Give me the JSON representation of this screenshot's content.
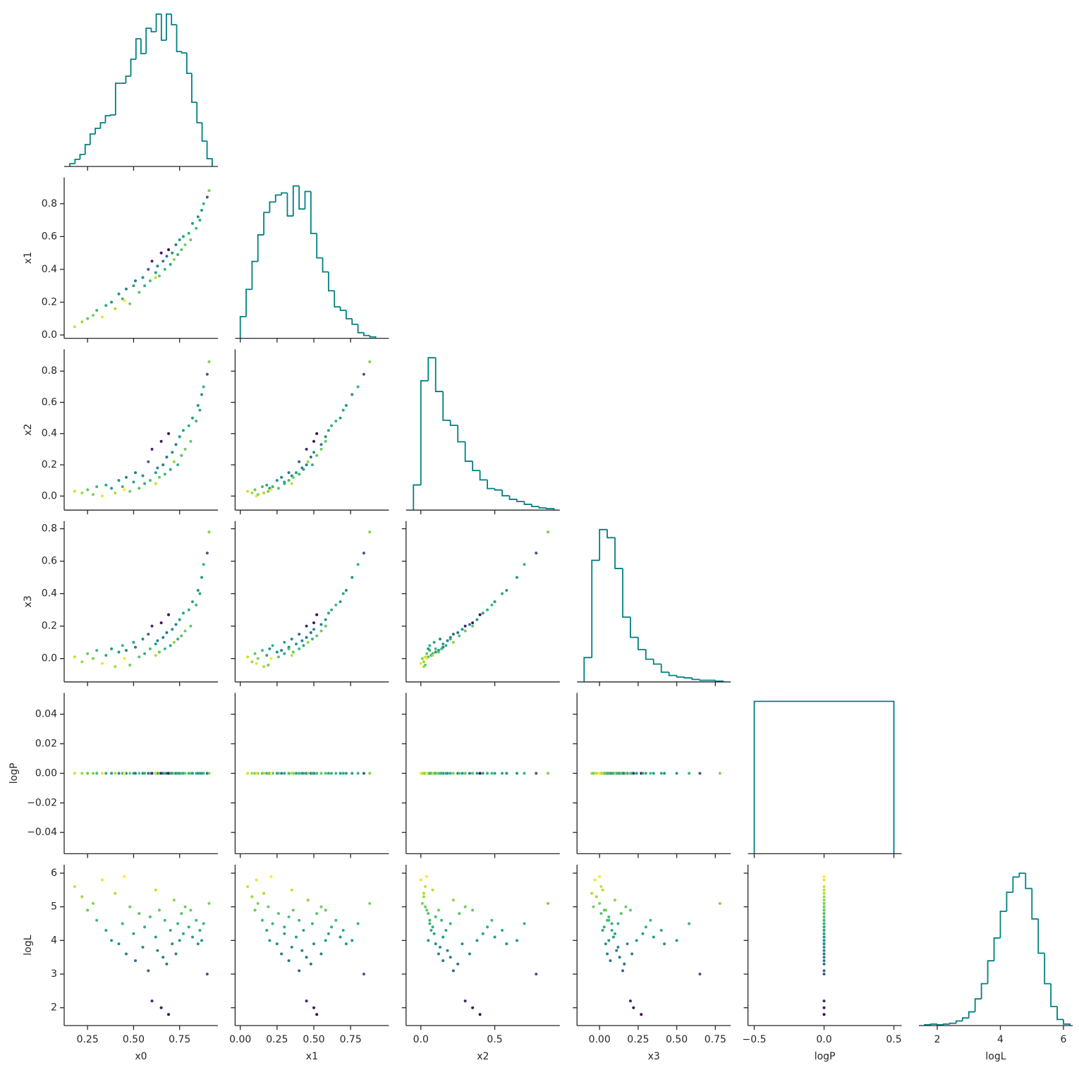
{
  "chart_data": {
    "type": "corner",
    "hist_color": "#008080",
    "color_by": "logL",
    "cmap": "viridis",
    "variables": [
      {
        "name": "x0",
        "xlim": [
          0.123,
          0.958
        ],
        "xticks": [
          0.25,
          {
            "value": 0.5,
            "label": "0.50"
          },
          0.75
        ],
        "bins": [
          0.154,
          0.182,
          0.209,
          0.237,
          0.264,
          0.292,
          0.32,
          0.347,
          0.375,
          0.402,
          0.43,
          0.458,
          0.485,
          0.513,
          0.54,
          0.568,
          0.596,
          0.623,
          0.651,
          0.678,
          0.706,
          0.734,
          0.761,
          0.789,
          0.816,
          0.844,
          0.872,
          0.899,
          0.927
        ],
        "counts": [
          4,
          10,
          17,
          31,
          46,
          54,
          62,
          72,
          73,
          118,
          118,
          128,
          152,
          181,
          160,
          196,
          191,
          216,
          179,
          216,
          201,
          163,
          161,
          132,
          91,
          62,
          36,
          11
        ]
      },
      {
        "name": "x1",
        "xlim": [
          -0.035,
          1.01
        ],
        "xticks": [
          {
            "value": 0,
            "label": "0.00"
          },
          0.25,
          {
            "value": 0.5,
            "label": "0.50"
          },
          0.75
        ],
        "ylim": [
          -0.02,
          0.96
        ],
        "yticks": [
          {
            "value": 0,
            "label": "0.0"
          },
          0.2,
          0.4,
          0.6,
          0.8
        ],
        "bins": [
          0,
          0.04,
          0.08,
          0.12,
          0.16,
          0.2,
          0.24,
          0.28,
          0.32,
          0.36,
          0.4,
          0.44,
          0.48,
          0.52,
          0.56,
          0.6,
          0.64,
          0.68,
          0.72,
          0.76,
          0.8,
          0.84,
          0.88,
          0.92
        ],
        "counts": [
          31,
          70,
          110,
          148,
          180,
          195,
          205,
          208,
          175,
          218,
          185,
          210,
          150,
          115,
          95,
          68,
          45,
          40,
          28,
          20,
          8,
          4,
          2
        ]
      },
      {
        "name": "x2",
        "xlim": [
          -0.1,
          0.94
        ],
        "xticks": [
          {
            "value": 0,
            "label": "0.0"
          },
          0.5
        ],
        "ylim": [
          -0.09,
          0.94
        ],
        "yticks": [
          {
            "value": 0,
            "label": "0.0"
          },
          0.2,
          0.4,
          0.6,
          0.8
        ],
        "bins": [
          -0.05,
          0,
          0.05,
          0.1,
          0.15,
          0.2,
          0.25,
          0.3,
          0.35,
          0.4,
          0.45,
          0.5,
          0.55,
          0.6,
          0.65,
          0.7,
          0.75,
          0.8,
          0.85,
          0.9
        ],
        "counts": [
          35,
          180,
          212,
          165,
          125,
          118,
          95,
          68,
          55,
          42,
          30,
          28,
          20,
          15,
          12,
          8,
          5,
          3,
          2
        ]
      },
      {
        "name": "x3",
        "xlim": [
          -0.146,
          0.85
        ],
        "xticks": [
          {
            "value": 0,
            "label": "0.00"
          },
          0.25,
          {
            "value": 0.5,
            "label": "0.50"
          },
          0.75
        ],
        "ylim": [
          -0.144,
          0.847
        ],
        "yticks": [
          {
            "value": 0,
            "label": "0.0"
          },
          0.2,
          0.4,
          0.6,
          0.8
        ],
        "bins": [
          -0.1,
          -0.05,
          0,
          0.05,
          0.1,
          0.15,
          0.2,
          0.25,
          0.3,
          0.35,
          0.4,
          0.45,
          0.5,
          0.55,
          0.6,
          0.65,
          0.7,
          0.75,
          0.8
        ],
        "counts": [
          30,
          150,
          188,
          178,
          140,
          80,
          55,
          40,
          28,
          22,
          12,
          8,
          6,
          5,
          3,
          2,
          2,
          1
        ]
      },
      {
        "name": "logP",
        "xlim": [
          -0.545,
          0.556
        ],
        "xticks": [
          {
            "value": -0.5,
            "label": "−0.5"
          },
          {
            "value": 0,
            "label": "0.0"
          },
          0.5
        ],
        "ylim": [
          -0.0544,
          0.0544
        ],
        "yticks": [
          {
            "value": -0.04,
            "label": "−0.04"
          },
          {
            "value": -0.02,
            "label": "−0.02"
          },
          {
            "value": 0,
            "label": "0.00"
          },
          0.02,
          0.04
        ],
        "bins": [
          -0.5,
          0.5
        ],
        "counts": [
          1
        ]
      },
      {
        "name": "logL",
        "xlim": [
          1.42,
          6.29
        ],
        "xticks": [
          2,
          4,
          6
        ],
        "ylim": [
          1.47,
          6.25
        ],
        "yticks": [
          2,
          3,
          4,
          5,
          6
        ],
        "bins": [
          1.6,
          1.8,
          2.0,
          2.2,
          2.4,
          2.6,
          2.8,
          3.0,
          3.2,
          3.4,
          3.6,
          3.8,
          4.0,
          4.2,
          4.4,
          4.6,
          4.8,
          5.0,
          5.2,
          5.4,
          5.6,
          5.8,
          6.0,
          6.2
        ],
        "counts": [
          1,
          2,
          1,
          2,
          3,
          6,
          10,
          18,
          35,
          55,
          85,
          115,
          150,
          175,
          195,
          200,
          180,
          140,
          95,
          55,
          25,
          8,
          2
        ]
      }
    ],
    "samples": {
      "x0": [
        0.18,
        0.22,
        0.25,
        0.28,
        0.3,
        0.33,
        0.35,
        0.38,
        0.4,
        0.42,
        0.44,
        0.46,
        0.48,
        0.5,
        0.51,
        0.53,
        0.55,
        0.56,
        0.58,
        0.59,
        0.6,
        0.62,
        0.63,
        0.64,
        0.65,
        0.66,
        0.67,
        0.68,
        0.69,
        0.7,
        0.71,
        0.72,
        0.73,
        0.74,
        0.75,
        0.76,
        0.77,
        0.78,
        0.8,
        0.81,
        0.82,
        0.84,
        0.85,
        0.86,
        0.87,
        0.88,
        0.9,
        0.91,
        0.45,
        0.62
      ],
      "x1": [
        0.05,
        0.08,
        0.1,
        0.12,
        0.15,
        0.11,
        0.18,
        0.2,
        0.16,
        0.25,
        0.22,
        0.28,
        0.19,
        0.3,
        0.33,
        0.26,
        0.35,
        0.3,
        0.4,
        0.33,
        0.45,
        0.38,
        0.42,
        0.36,
        0.5,
        0.45,
        0.4,
        0.48,
        0.52,
        0.43,
        0.5,
        0.46,
        0.55,
        0.49,
        0.58,
        0.52,
        0.6,
        0.55,
        0.62,
        0.58,
        0.68,
        0.65,
        0.72,
        0.7,
        0.76,
        0.8,
        0.84,
        0.88,
        0.21,
        0.35
      ],
      "x2": [
        0.03,
        0.02,
        0.04,
        0.01,
        0.06,
        0.0,
        0.07,
        0.05,
        0.02,
        0.1,
        0.06,
        0.12,
        0.03,
        0.09,
        0.15,
        0.05,
        0.13,
        0.08,
        0.22,
        0.1,
        0.3,
        0.15,
        0.18,
        0.12,
        0.35,
        0.2,
        0.14,
        0.25,
        0.4,
        0.17,
        0.28,
        0.22,
        0.33,
        0.2,
        0.38,
        0.26,
        0.42,
        0.3,
        0.45,
        0.35,
        0.5,
        0.48,
        0.58,
        0.55,
        0.65,
        0.7,
        0.78,
        0.86,
        0.04,
        0.08
      ],
      "x3": [
        0.01,
        -0.02,
        0.03,
        0.0,
        0.05,
        -0.03,
        0.02,
        0.06,
        -0.05,
        0.04,
        0.08,
        0.05,
        -0.04,
        0.1,
        0.07,
        0.01,
        0.12,
        0.03,
        0.15,
        0.06,
        0.2,
        0.09,
        0.11,
        0.04,
        0.22,
        0.13,
        0.06,
        0.16,
        0.27,
        0.08,
        0.18,
        0.1,
        0.21,
        0.12,
        0.24,
        0.14,
        0.28,
        0.17,
        0.3,
        0.2,
        0.35,
        0.33,
        0.42,
        0.4,
        0.5,
        0.58,
        0.65,
        0.78,
        0.0,
        0.02
      ],
      "logP": [
        0,
        0,
        0,
        0,
        0,
        0,
        0,
        0,
        0,
        0,
        0,
        0,
        0,
        0,
        0,
        0,
        0,
        0,
        0,
        0,
        0,
        0,
        0,
        0,
        0,
        0,
        0,
        0,
        0,
        0,
        0,
        0,
        0,
        0,
        0,
        0,
        0,
        0,
        0,
        0,
        0,
        0,
        0,
        0,
        0,
        0,
        0,
        0,
        0,
        0
      ],
      "logL": [
        5.6,
        5.3,
        4.9,
        5.1,
        4.6,
        5.8,
        4.3,
        4.0,
        5.4,
        3.9,
        4.5,
        3.6,
        5.0,
        4.2,
        3.4,
        4.8,
        3.8,
        4.4,
        3.1,
        4.7,
        2.2,
        4.1,
        3.7,
        4.9,
        2.0,
        3.5,
        4.6,
        3.3,
        1.8,
        4.3,
        3.9,
        5.2,
        3.6,
        4.5,
        4.0,
        4.8,
        4.2,
        5.0,
        4.4,
        4.9,
        4.1,
        4.6,
        3.9,
        4.3,
        4.0,
        4.5,
        3.0,
        5.1,
        5.9,
        5.5
      ]
    }
  }
}
